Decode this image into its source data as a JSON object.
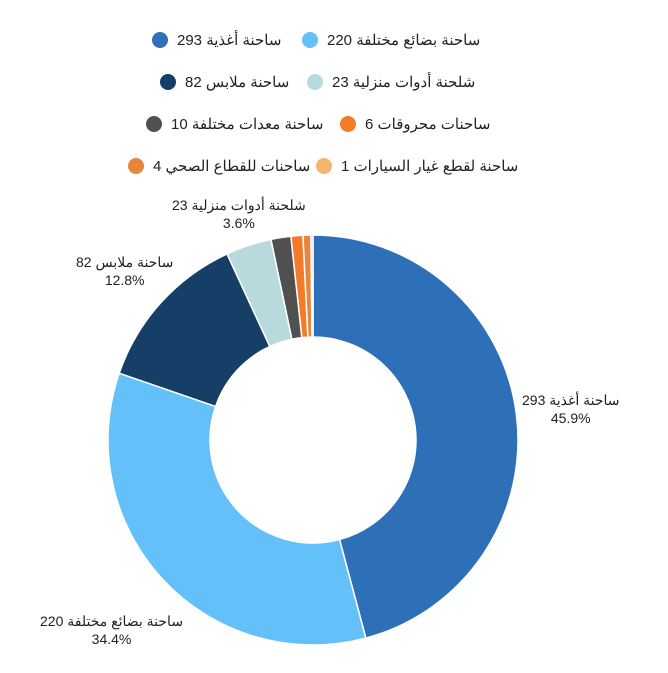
{
  "chart_data": {
    "type": "pie",
    "donut": true,
    "start": "top",
    "direction": "clockwise",
    "legend_position": "top",
    "series": [
      {
        "name": "ساحنة أغذية",
        "value": 293,
        "legend": "ساحنة أغذية 293",
        "label_name": "ساحنة أغذية 293",
        "percent": "45.9%",
        "color": "#2e70b8"
      },
      {
        "name": "ساحنة بضائع مختلفة",
        "value": 220,
        "legend": "ساحنة بضائع مختلفة 220",
        "label_name": "ساحنة بضائع مختلفة 220",
        "percent": "34.4%",
        "color": "#63c0f9"
      },
      {
        "name": "ساحنة ملابس",
        "value": 82,
        "legend": "ساحنة ملابس 82",
        "label_name": "ساحنة ملابس 82",
        "percent": "12.8%",
        "color": "#153f66"
      },
      {
        "name": "شلحنة أدوات منزلية",
        "value": 23,
        "legend": "شلحنة أدوات منزلية 23",
        "label_name": "شلحنة أدوات منزلية 23",
        "percent": "3.6%",
        "color": "#b8dadd"
      },
      {
        "name": "ساحنة معدات مختلفة",
        "value": 10,
        "legend": "ساحنة معدات مختلفة 10",
        "color": "#505050"
      },
      {
        "name": "ساحنات محروقات",
        "value": 6,
        "legend": "ساحنات محروقات 6",
        "color": "#f47b27"
      },
      {
        "name": "ساحنات للقطاع الصحي",
        "value": 4,
        "legend": "ساحنات للقطاع الصحي 4",
        "color": "#e8843c"
      },
      {
        "name": "ساحنة لقطع غيار السيارات",
        "value": 1,
        "legend": "ساحنة لقطع غيار السيارات 1",
        "color": "#f6b46e"
      }
    ]
  }
}
